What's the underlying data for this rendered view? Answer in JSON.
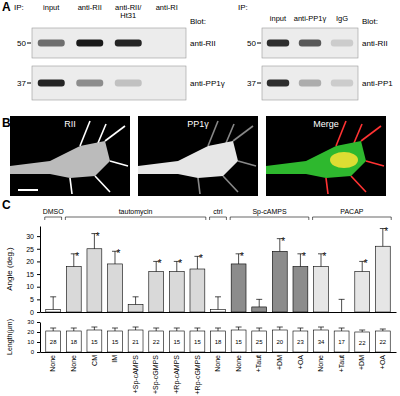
{
  "panel_labels": [
    "A",
    "B",
    "C"
  ],
  "panel_a": {
    "left": {
      "ip": "IP:",
      "lanes": [
        [
          "input"
        ],
        [
          "anti-RII"
        ],
        [
          "anti-RII/",
          "Ht31"
        ],
        [
          "anti-RI"
        ]
      ],
      "blot": "Blot:",
      "rows": [
        {
          "label": "anti-RII",
          "mw": 50,
          "bands": [
            0.6,
            1,
            0.95,
            0
          ]
        },
        {
          "label": "anti-PP1γ",
          "mw": 37,
          "bands": [
            0.95,
            0.45,
            0.2,
            0
          ]
        }
      ]
    },
    "right": {
      "ip": "IP:",
      "lanes": [
        [
          "input"
        ],
        [
          "anti-PP1γ"
        ],
        [
          "IgG"
        ]
      ],
      "blot": "Blot:",
      "rows": [
        {
          "label": "anti-RII",
          "mw": 50,
          "bands": [
            0.9,
            0.7,
            0.15
          ]
        },
        {
          "label": "anti-PP1",
          "mw": 37,
          "bands": [
            0.9,
            0.3,
            0.15
          ]
        }
      ]
    }
  },
  "panel_b": {
    "image_labels": [
      "RII",
      "PP1γ",
      "Merge"
    ]
  },
  "chart_data": [
    {
      "type": "bar",
      "categories": [
        null,
        null,
        null,
        null,
        null,
        null,
        null,
        null,
        null,
        null,
        null,
        null,
        null,
        null,
        null,
        null,
        null
      ],
      "values": [
        1,
        18,
        25,
        19,
        3,
        16,
        16,
        17,
        1,
        19,
        2,
        24,
        18,
        18,
        0,
        16,
        26
      ],
      "errors": [
        5,
        5,
        6,
        5,
        3,
        4,
        4,
        5,
        5,
        4,
        3,
        5,
        5,
        5,
        5,
        4,
        7
      ],
      "significance": [
        null,
        "*",
        "*",
        "*",
        null,
        "*",
        "*",
        "*",
        null,
        "*",
        null,
        "*",
        "*",
        "*",
        null,
        "*",
        "*"
      ],
      "colors": [
        "#ffffff",
        "#d9d9d9",
        "#d9d9d9",
        "#d9d9d9",
        "#d9d9d9",
        "#d9d9d9",
        "#d9d9d9",
        "#d9d9d9",
        "#ffffff",
        "#8c8c8c",
        "#8c8c8c",
        "#8c8c8c",
        "#8c8c8c",
        "#e6e6e6",
        "#e6e6e6",
        "#e6e6e6",
        "#e6e6e6"
      ],
      "ylabel": "Angle (deg.)",
      "ylim": [
        0,
        34
      ],
      "yticks": [
        0,
        5,
        10,
        15,
        20,
        25,
        30
      ],
      "tick_labels": "y",
      "annotations": [
        {
          "text": "DMSO",
          "from": 0,
          "to": 0
        },
        {
          "text": "tautomycin",
          "from": 1,
          "to": 7
        },
        {
          "text": "ctrl",
          "from": 8,
          "to": 8
        },
        {
          "text": "Sp-cAMPS",
          "from": 9,
          "to": 12
        },
        {
          "text": "PACAP",
          "from": 13,
          "to": 16
        }
      ]
    },
    {
      "type": "bar",
      "categories": [
        "None",
        "None",
        "CM",
        "IM",
        "+Sp-cAMPS",
        "+Sp-cGMPS",
        "+Rp-cAMPS",
        "+Rp-cGMPS",
        "None",
        "None",
        "+Taut",
        "+DM",
        "+OA",
        "None",
        "+Taut",
        "+DM",
        "+OA"
      ],
      "values": [
        21,
        21,
        22,
        21,
        22,
        21,
        21,
        21,
        21,
        22,
        21,
        22,
        21,
        22,
        21,
        20,
        21
      ],
      "errors": [
        3,
        3,
        3,
        3,
        3,
        3,
        3,
        3,
        3,
        3,
        3,
        3,
        3,
        3,
        3,
        2,
        2
      ],
      "n": [
        28,
        18,
        15,
        15,
        21,
        22,
        15,
        15,
        18,
        15,
        25,
        20,
        23,
        34,
        17,
        22,
        22
      ],
      "color": "#ffffff",
      "ylabel": "Length(µm)",
      "ylim": [
        0,
        30
      ],
      "yticks": [
        0,
        10,
        20,
        30
      ]
    }
  ]
}
